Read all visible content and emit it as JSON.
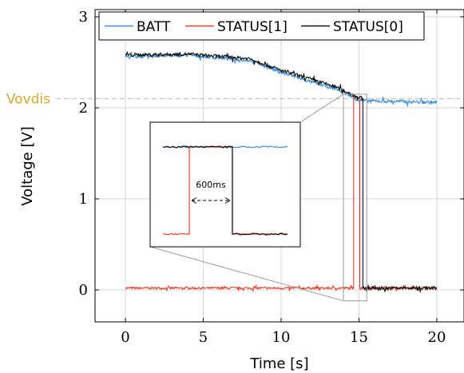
{
  "chart_data": {
    "type": "line",
    "xlabel": "Time [s]",
    "ylabel": "Voltage [V]",
    "xlim": [
      -2,
      22
    ],
    "ylim": [
      -0.35,
      3.05
    ],
    "xticks": [
      {
        "value": 0,
        "label": "0"
      },
      {
        "value": 5,
        "label": "5"
      },
      {
        "value": 10,
        "label": "10"
      },
      {
        "value": 15,
        "label": "15"
      },
      {
        "value": 20,
        "label": "20"
      }
    ],
    "yticks": [
      {
        "value": 0,
        "label": "0"
      },
      {
        "value": 1,
        "label": "1"
      },
      {
        "value": 2,
        "label": "2"
      },
      {
        "value": 3,
        "label": "3"
      }
    ],
    "grid": true,
    "legend_position": "top-right",
    "colors": {
      "BATT": "#3b8fd9",
      "STATUS[1]": "#e8412c",
      "STATUS[0]": "#111111",
      "threshold": "#d4a72c"
    },
    "series": [
      {
        "name": "BATT",
        "color": "#3b8fd9",
        "x": [
          0,
          4,
          8,
          10,
          12,
          13.5,
          14.5,
          15,
          20
        ],
        "y": [
          2.56,
          2.58,
          2.52,
          2.39,
          2.28,
          2.21,
          2.13,
          2.08,
          2.06
        ]
      },
      {
        "name": "STATUS[1]",
        "color": "#e8412c",
        "x": [
          0,
          14.65,
          14.65,
          15.05,
          15.05,
          20
        ],
        "y": [
          0.02,
          0.02,
          2.11,
          2.11,
          0.02,
          0.02
        ]
      },
      {
        "name": "STATUS[0]",
        "color": "#111111",
        "x": [
          0,
          4,
          8,
          10,
          12,
          13.5,
          14.5,
          15.25,
          15.25,
          20
        ],
        "y": [
          2.58,
          2.59,
          2.54,
          2.41,
          2.31,
          2.23,
          2.15,
          2.1,
          0.02,
          0.02
        ]
      }
    ],
    "threshold": {
      "label": "Vovdis",
      "value": 2.1
    },
    "inset": {
      "annotation": "600ms",
      "source_x_range": [
        14.0,
        15.5
      ],
      "source_y_range": [
        -0.12,
        2.15
      ]
    }
  }
}
